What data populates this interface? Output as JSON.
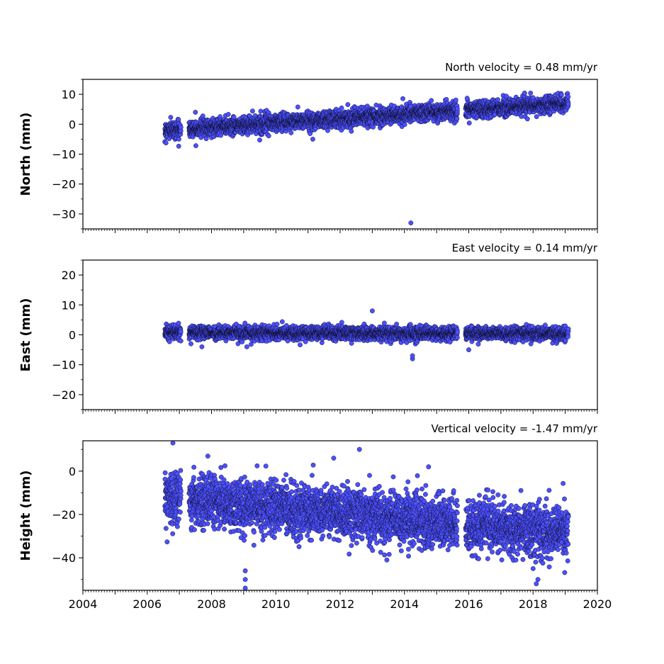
{
  "chart_data": [
    {
      "type": "scatter",
      "title": "North velocity = 0.48 mm/yr",
      "ylabel": "North (mm)",
      "xlabel": "",
      "xlim": [
        2004,
        2020
      ],
      "ylim": [
        -35,
        15
      ],
      "yticks": [
        10,
        0,
        -10,
        -20,
        -30
      ],
      "ytick_labels": [
        "10",
        "0",
        "−10",
        "−20",
        "−30"
      ],
      "marker_color": "#4c50ff",
      "edge_color": "#000000",
      "x_extent": [
        2006.55,
        2019.1
      ],
      "gaps": [
        [
          2007.05,
          2007.3
        ],
        [
          2015.65,
          2015.9
        ]
      ],
      "trend": {
        "start": -2,
        "end": 7
      },
      "spread": 1.4,
      "outliers": [
        {
          "x": 2014.2,
          "y": -33
        },
        {
          "x": 2011.15,
          "y": -5
        },
        {
          "x": 2015.95,
          "y": 8.7
        },
        {
          "x": 2007.5,
          "y": 4
        }
      ]
    },
    {
      "type": "scatter",
      "title": "East velocity = 0.14 mm/yr",
      "ylabel": "East (mm)",
      "xlabel": "",
      "xlim": [
        2004,
        2020
      ],
      "ylim": [
        -25,
        25
      ],
      "yticks": [
        20,
        10,
        0,
        -10,
        -20
      ],
      "ytick_labels": [
        "20",
        "10",
        "0",
        "−10",
        "−20"
      ],
      "marker_color": "#4c50ff",
      "edge_color": "#000000",
      "x_extent": [
        2006.55,
        2019.1
      ],
      "gaps": [
        [
          2007.05,
          2007.3
        ],
        [
          2015.65,
          2015.9
        ]
      ],
      "trend": {
        "start": 0.8,
        "end": 0.3
      },
      "spread": 1.1,
      "outliers": [
        {
          "x": 2013.0,
          "y": 8
        },
        {
          "x": 2014.25,
          "y": -8
        },
        {
          "x": 2014.25,
          "y": -7
        },
        {
          "x": 2007.7,
          "y": -4
        },
        {
          "x": 2009.1,
          "y": -4
        },
        {
          "x": 2016.0,
          "y": -5
        }
      ]
    },
    {
      "type": "scatter",
      "title": "Vertical velocity = -1.47 mm/yr",
      "ylabel": "Height (mm)",
      "xlabel": "",
      "xlim": [
        2004,
        2020
      ],
      "ylim": [
        -55,
        14
      ],
      "yticks": [
        0,
        -20,
        -40
      ],
      "ytick_labels": [
        "0",
        "−20",
        "−40"
      ],
      "xticks": [
        2004,
        2006,
        2008,
        2010,
        2012,
        2014,
        2016,
        2018,
        2020
      ],
      "xtick_labels": [
        "2004",
        "2006",
        "2008",
        "2010",
        "2012",
        "2014",
        "2016",
        "2018",
        "2020"
      ],
      "marker_color": "#4c50ff",
      "edge_color": "#000000",
      "x_extent": [
        2006.55,
        2019.1
      ],
      "gaps": [
        [
          2007.05,
          2007.3
        ],
        [
          2015.65,
          2015.9
        ]
      ],
      "trend": {
        "start": -12,
        "end": -29
      },
      "spread": 6,
      "outliers": [
        {
          "x": 2006.8,
          "y": 13
        },
        {
          "x": 2012.6,
          "y": 10
        },
        {
          "x": 2011.8,
          "y": 6
        },
        {
          "x": 2014.75,
          "y": 2
        },
        {
          "x": 2009.05,
          "y": -46
        },
        {
          "x": 2009.05,
          "y": -50
        },
        {
          "x": 2009.05,
          "y": -54
        },
        {
          "x": 2018.1,
          "y": -52
        },
        {
          "x": 2018.15,
          "y": -50
        },
        {
          "x": 2018.0,
          "y": -45
        }
      ]
    }
  ]
}
